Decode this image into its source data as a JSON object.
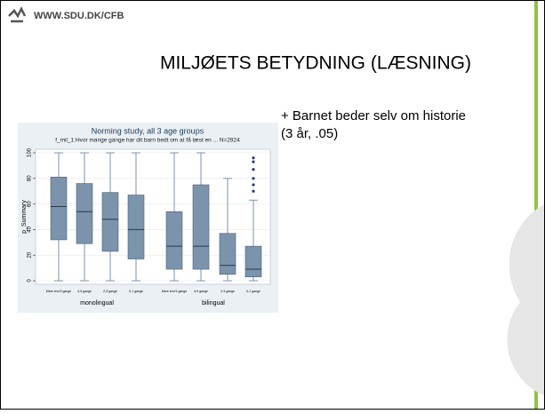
{
  "header": {
    "logo": "WWW.SDU.DK/CFB"
  },
  "slide_title": "MILJØETS  BETYDNING (LÆSNING)",
  "body_lines": [
    "+ Barnet beder selv om historie",
    "(3 år, .05)"
  ],
  "chart_data": {
    "type": "box",
    "title": "Norming study, all 3 age groups",
    "subtitle": "f_mil_1:Hvor mange gange har dit barn bedt om at få læst en ... N=2924",
    "y_label": "p_Summary",
    "categories": [
      "Mere end 5 gange",
      "4-5 gange",
      "2-3 gange",
      "0-1 gange",
      "Mere end 5 gange",
      "4-5 gange",
      "2-3 gange",
      "0-1 gange"
    ],
    "groups": [
      "monolingual",
      "bilingual"
    ],
    "color": "#7b93ab",
    "boxes": [
      {
        "min": 0,
        "q1": 32,
        "median": 58,
        "q3": 81,
        "max": 100
      },
      {
        "min": 0,
        "q1": 29,
        "median": 54,
        "q3": 76,
        "max": 100
      },
      {
        "min": 0,
        "q1": 23,
        "median": 48,
        "q3": 69,
        "max": 100
      },
      {
        "min": 0,
        "q1": 17,
        "median": 40,
        "q3": 67,
        "max": 100
      },
      {
        "min": 0,
        "q1": 9,
        "median": 27,
        "q3": 54,
        "max": 100
      },
      {
        "min": 0,
        "q1": 9,
        "median": 27,
        "q3": 75,
        "max": 100
      },
      {
        "min": 0,
        "q1": 5,
        "median": 12,
        "q3": 37,
        "max": 80
      },
      {
        "min": 0,
        "q1": 3,
        "median": 9,
        "q3": 27,
        "max": 63,
        "outliers": [
          70,
          75,
          80,
          87,
          93,
          96
        ]
      }
    ],
    "ylim": [
      0,
      100
    ],
    "yticks": [
      0,
      20,
      40,
      60,
      80,
      100
    ]
  }
}
